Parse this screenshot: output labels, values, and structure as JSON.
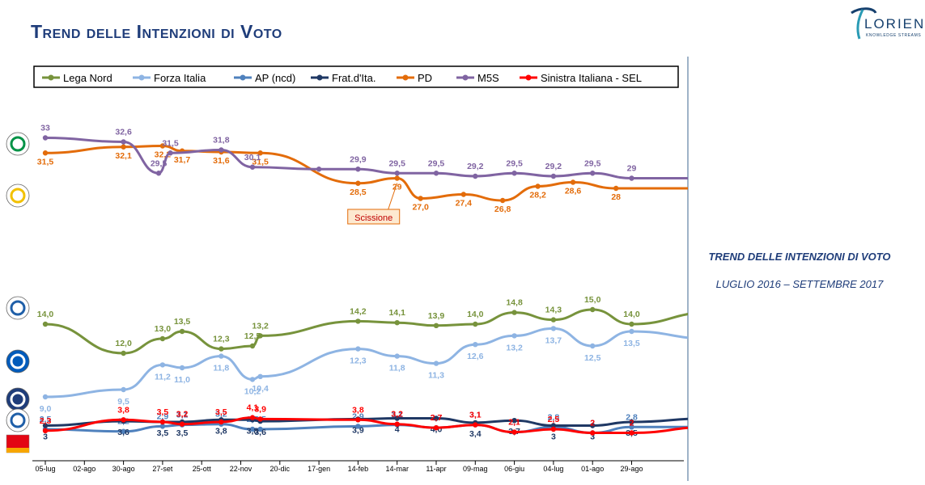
{
  "header": {
    "title": "Trend delle Intenzioni di Voto",
    "logo_text": "LORIEN",
    "logo_sub": "KNOWLEDGE STREAMS"
  },
  "side": {
    "title": "TREND DELLE INTENZIONI DI VOTO",
    "period": "LUGLIO 2016 – SETTEMBRE 2017"
  },
  "chart_data": {
    "type": "line",
    "title": "",
    "xlabel": "",
    "ylabel": "",
    "ylim": [
      0,
      35
    ],
    "grid": false,
    "legend_position": "top",
    "x_ticks": [
      "05-lug",
      "02-ago",
      "30-ago",
      "27-set",
      "25-ott",
      "22-nov",
      "20-dic",
      "17-gen",
      "14-feb",
      "14-mar",
      "11-apr",
      "09-mag",
      "06-giu",
      "04-lug",
      "01-ago",
      "29-ago"
    ],
    "annotation": {
      "text": "Scissione",
      "x": 8.4,
      "y": 28.2
    },
    "series": [
      {
        "name": "Lega Nord",
        "color": "#77933c",
        "points": [
          [
            0,
            14.0
          ],
          [
            2,
            12.0
          ],
          [
            3,
            13.0
          ],
          [
            3.5,
            13.5
          ],
          [
            4.5,
            12.3
          ],
          [
            5.3,
            12.5
          ],
          [
            5.5,
            13.2
          ],
          [
            8,
            14.2
          ],
          [
            9,
            14.1
          ],
          [
            10,
            13.9
          ],
          [
            11,
            14.0
          ],
          [
            12,
            14.8
          ],
          [
            13,
            14.3
          ],
          [
            14,
            15.0
          ],
          [
            15,
            14.0
          ],
          [
            17,
            14.8
          ]
        ],
        "labels": [
          [
            0,
            "14,0"
          ],
          [
            2,
            "12,0"
          ],
          [
            3,
            "13,0"
          ],
          [
            3.5,
            "13,5"
          ],
          [
            4.5,
            "12,3"
          ],
          [
            5.3,
            "12,5"
          ],
          [
            5.5,
            "13,2"
          ],
          [
            8,
            "14,2"
          ],
          [
            9,
            "14,1"
          ],
          [
            10,
            "13,9"
          ],
          [
            11,
            "14,0"
          ],
          [
            12,
            "14,8"
          ],
          [
            13,
            "14,3"
          ],
          [
            14,
            "15,0"
          ],
          [
            15,
            "14,0"
          ],
          [
            17,
            "14,8"
          ]
        ]
      },
      {
        "name": "Forza Italia",
        "color": "#8eb4e3",
        "points": [
          [
            0,
            9.0
          ],
          [
            2,
            9.5
          ],
          [
            3,
            11.2
          ],
          [
            3.5,
            11.0
          ],
          [
            4.5,
            11.8
          ],
          [
            5.3,
            10.2
          ],
          [
            5.5,
            10.4
          ],
          [
            8,
            12.3
          ],
          [
            9,
            11.8
          ],
          [
            10,
            11.3
          ],
          [
            11,
            12.6
          ],
          [
            12,
            13.2
          ],
          [
            13,
            13.7
          ],
          [
            14,
            12.5
          ],
          [
            15,
            13.5
          ],
          [
            17,
            13.0
          ]
        ],
        "labels": [
          [
            0,
            "9,0"
          ],
          [
            2,
            "9,5"
          ],
          [
            3,
            "11,2"
          ],
          [
            3.5,
            "11,0"
          ],
          [
            4.5,
            "11,8"
          ],
          [
            5.3,
            "10,2"
          ],
          [
            5.5,
            "10,4"
          ],
          [
            8,
            "12,3"
          ],
          [
            9,
            "11,8"
          ],
          [
            10,
            "11,3"
          ],
          [
            11,
            "12,6"
          ],
          [
            12,
            "13,2"
          ],
          [
            13,
            "13,7"
          ],
          [
            14,
            "12,5"
          ],
          [
            15,
            "13,5"
          ],
          [
            17,
            "13,0"
          ]
        ]
      },
      {
        "name": "AP (ncd)",
        "color": "#4f81bd",
        "points": [
          [
            0,
            2.5
          ],
          [
            2,
            2.2
          ],
          [
            3,
            2.9
          ],
          [
            3.5,
            3.1
          ],
          [
            4.5,
            3.2
          ],
          [
            5.3,
            2.5
          ],
          [
            5.5,
            2.5
          ],
          [
            8,
            2.9
          ],
          [
            9,
            3.1
          ],
          [
            10,
            2.7
          ],
          [
            11,
            3.1
          ],
          [
            12,
            2.1
          ],
          [
            13,
            2.8
          ],
          [
            14,
            2.0
          ],
          [
            15,
            2.8
          ],
          [
            17,
            2.8
          ]
        ],
        "labels": [
          [
            0,
            "2,5"
          ],
          [
            2,
            "2,2"
          ],
          [
            3,
            "2,9"
          ],
          [
            3.5,
            "3,1"
          ],
          [
            4.5,
            "3,2"
          ],
          [
            5.3,
            "2,5"
          ],
          [
            5.5,
            "2,5"
          ],
          [
            8,
            "2,9"
          ],
          [
            9,
            "3,1"
          ],
          [
            10,
            "2,7"
          ],
          [
            11,
            "3,1"
          ],
          [
            12,
            "2,1"
          ],
          [
            13,
            "2,8"
          ],
          [
            14,
            "2"
          ],
          [
            15,
            "2,8"
          ],
          [
            17,
            "2,8"
          ]
        ]
      },
      {
        "name": "Frat.d'Ita.",
        "color": "#1f3864",
        "points": [
          [
            0,
            3.0
          ],
          [
            2,
            3.6
          ],
          [
            3,
            3.5
          ],
          [
            3.5,
            3.5
          ],
          [
            4.5,
            3.8
          ],
          [
            5.3,
            3.8
          ],
          [
            5.5,
            3.6
          ],
          [
            8,
            3.9
          ],
          [
            9,
            4.0
          ],
          [
            10,
            4.0
          ],
          [
            11,
            3.4
          ],
          [
            12,
            3.7
          ],
          [
            13,
            3.0
          ],
          [
            14,
            3.0
          ],
          [
            15,
            3.5
          ],
          [
            17,
            4.0
          ]
        ],
        "labels": [
          [
            0,
            "3"
          ],
          [
            2,
            "3,6"
          ],
          [
            3,
            "3,5"
          ],
          [
            3.5,
            "3,5"
          ],
          [
            4.5,
            "3,8"
          ],
          [
            5.3,
            "3,8"
          ],
          [
            5.5,
            "3,6"
          ],
          [
            8,
            "3,9"
          ],
          [
            9,
            "4"
          ],
          [
            10,
            "4,0"
          ],
          [
            11,
            "3,4"
          ],
          [
            12,
            "3,7"
          ],
          [
            13,
            "3"
          ],
          [
            14,
            "3"
          ],
          [
            15,
            "3,5"
          ],
          [
            17,
            "4"
          ]
        ]
      },
      {
        "name": "PD",
        "color": "#e36c0a",
        "points": [
          [
            0,
            31.5
          ],
          [
            2,
            32.1
          ],
          [
            3,
            32.2
          ],
          [
            3.5,
            31.7
          ],
          [
            4.5,
            31.6
          ],
          [
            5.5,
            31.5
          ],
          [
            8,
            28.5
          ],
          [
            9,
            29.0
          ],
          [
            9.6,
            27.0
          ],
          [
            10.7,
            27.4
          ],
          [
            11.7,
            26.8
          ],
          [
            12.6,
            28.2
          ],
          [
            13.5,
            28.6
          ],
          [
            14.6,
            28.0
          ],
          [
            17,
            28.0
          ]
        ],
        "labels": [
          [
            0,
            "31,5"
          ],
          [
            2,
            "32,1"
          ],
          [
            3,
            "32,2"
          ],
          [
            3.5,
            "31,7"
          ],
          [
            4.5,
            "31,6"
          ],
          [
            5.5,
            "31,5"
          ],
          [
            8,
            "28,5"
          ],
          [
            9,
            "29"
          ],
          [
            9.6,
            "27,0"
          ],
          [
            10.7,
            "27,4"
          ],
          [
            11.7,
            "26,8"
          ],
          [
            12.6,
            "28,2"
          ],
          [
            13.5,
            "28,6"
          ],
          [
            14.6,
            "28"
          ],
          [
            17,
            "28"
          ]
        ]
      },
      {
        "name": "M5S",
        "color": "#8064a2",
        "points": [
          [
            0,
            33.0
          ],
          [
            2,
            32.6
          ],
          [
            2.9,
            29.5
          ],
          [
            3.2,
            31.5
          ],
          [
            4.5,
            31.8
          ],
          [
            5.3,
            30.1
          ],
          [
            7,
            29.9
          ],
          [
            8,
            29.9
          ],
          [
            9,
            29.5
          ],
          [
            10,
            29.5
          ],
          [
            11,
            29.2
          ],
          [
            12,
            29.5
          ],
          [
            13,
            29.2
          ],
          [
            14,
            29.5
          ],
          [
            15,
            29.0
          ],
          [
            17,
            29.0
          ]
        ],
        "labels": [
          [
            0,
            "33"
          ],
          [
            2,
            "32,6"
          ],
          [
            2.9,
            "29,5"
          ],
          [
            3.2,
            "31,5"
          ],
          [
            4.5,
            "31,8"
          ],
          [
            5.3,
            "30,1"
          ],
          [
            8,
            "29,9"
          ],
          [
            9,
            "29,5"
          ],
          [
            10,
            "29,5"
          ],
          [
            11,
            "29,2"
          ],
          [
            12,
            "29,5"
          ],
          [
            13,
            "29,2"
          ],
          [
            14,
            "29,5"
          ],
          [
            15,
            "29"
          ],
          [
            17,
            "29"
          ]
        ]
      },
      {
        "name": "Sinistra Italiana - SEL",
        "color": "#ff0000",
        "points": [
          [
            0,
            2.3
          ],
          [
            2,
            3.8
          ],
          [
            3,
            3.5
          ],
          [
            3.5,
            3.2
          ],
          [
            4.5,
            3.5
          ],
          [
            5.3,
            4.1
          ],
          [
            5.5,
            3.9
          ],
          [
            8,
            3.8
          ],
          [
            9,
            3.2
          ],
          [
            10,
            2.7
          ],
          [
            11,
            3.1
          ],
          [
            12,
            2.1
          ],
          [
            13,
            2.5
          ],
          [
            14,
            2.0
          ],
          [
            15,
            2.0
          ],
          [
            17,
            2.8
          ]
        ],
        "labels": [
          [
            0,
            "2,3"
          ],
          [
            2,
            "3,8"
          ],
          [
            3,
            "3,5"
          ],
          [
            3.5,
            "3,2"
          ],
          [
            4.5,
            "3,5"
          ],
          [
            5.3,
            "4,1"
          ],
          [
            5.5,
            "3,9"
          ],
          [
            8,
            "3,8"
          ],
          [
            9,
            "3,2"
          ],
          [
            10,
            "2,7"
          ],
          [
            11,
            "3,1"
          ],
          [
            12,
            "2,1"
          ],
          [
            13,
            "2,5"
          ],
          [
            14,
            "2"
          ],
          [
            15,
            "2"
          ],
          [
            17,
            "2,8"
          ]
        ]
      }
    ],
    "party_logos": [
      "PD",
      "Movimento 5 Stelle",
      "Lega Nord",
      "Forza Italia",
      "Fratelli d'Italia",
      "Alternativa Popolare",
      "Sinistra Ecologia Libertà"
    ]
  }
}
